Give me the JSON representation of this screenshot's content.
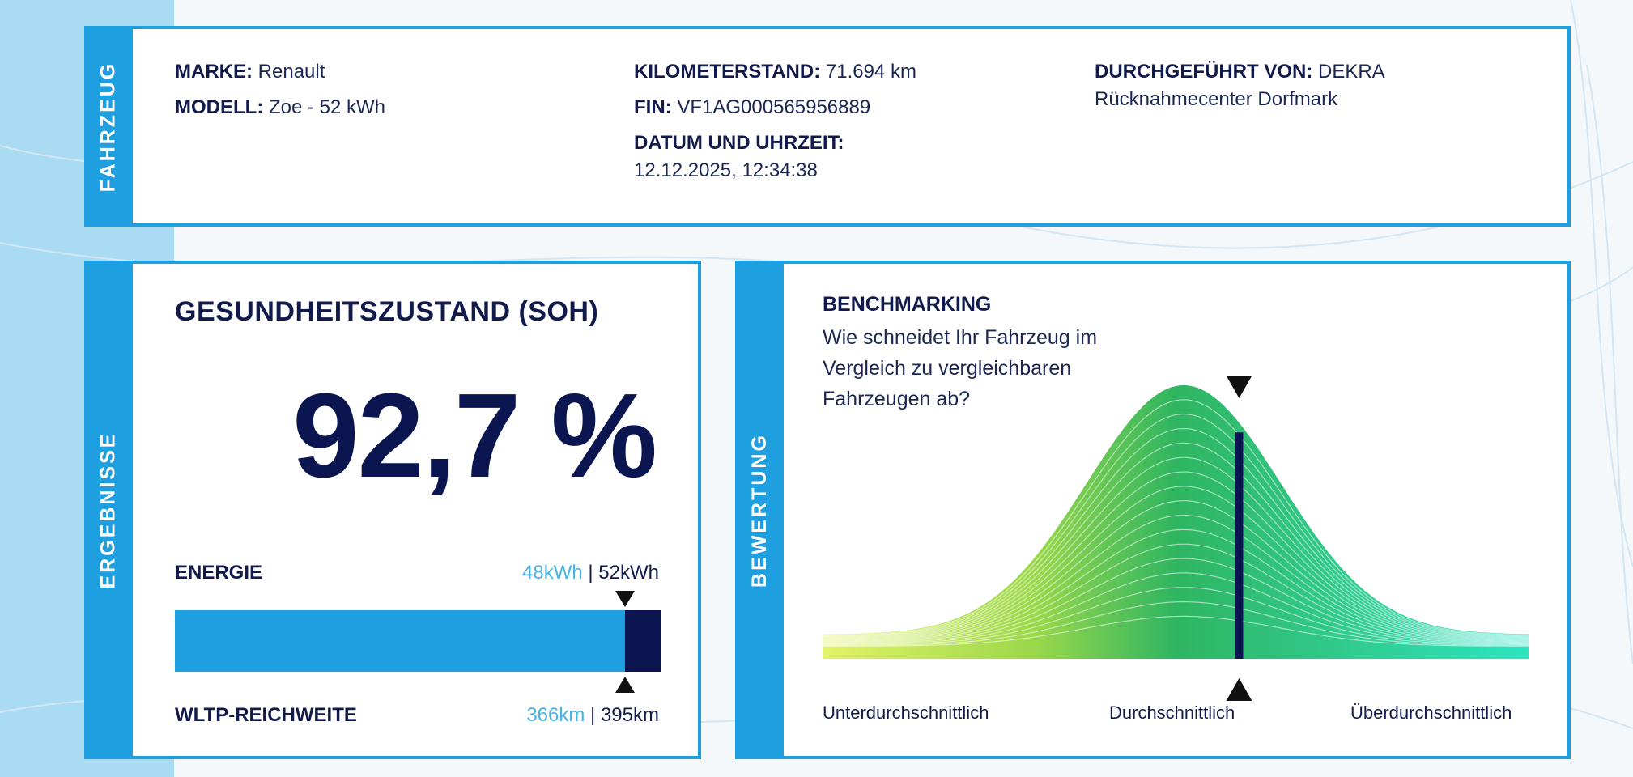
{
  "vehicle": {
    "section_label": "FAHRZEUG",
    "brand_label": "MARKE:",
    "brand": "Renault",
    "model_label": "MODELL:",
    "model": "Zoe - 52 kWh",
    "mileage_label": "KILOMETERSTAND:",
    "mileage": "71.694 km",
    "vin_label": "FIN:",
    "vin": "VF1AG000565956889",
    "datetime_label": "DATUM UND UHRZEIT:",
    "datetime": "12.12.2025, 12:34:38",
    "performed_by_label": "DURCHGEFÜHRT VON:",
    "performed_by": "DEKRA",
    "location": "Rücknahmecenter Dorfmark"
  },
  "results": {
    "section_label": "ERGEBNISSE",
    "soh_title": "GESUNDHEITSZUSTAND (SOH)",
    "soh_value": "92,7 %",
    "soh_fraction": 0.927,
    "energy_label": "ENERGIE",
    "energy_current": "48kWh",
    "energy_separator": "|",
    "energy_nominal": "52kWh",
    "range_label": "WLTP-REICHWEITE",
    "range_current": "366km",
    "range_separator": "|",
    "range_nominal": "395km",
    "colors": {
      "bar": "#1e9fe0",
      "bar_rest": "#0b1650",
      "current_text": "#47b2e4"
    }
  },
  "rating": {
    "section_label": "BEWERTUNG",
    "title": "BENCHMARKING",
    "question": "Wie schneidet Ihr Fahrzeug im Vergleich zu vergleichbaren Fahrzeugen ab?",
    "scale_low": "Unterdurchschnittlich",
    "scale_mid": "Durchschnittlich",
    "scale_high": "Überdurchschnittlich",
    "marker_position": 0.59,
    "colors": {
      "curve_left": "#e3f26a",
      "curve_mid": "#2fb561",
      "curve_right": "#2ee3c2",
      "marker": "#0b1650"
    }
  }
}
